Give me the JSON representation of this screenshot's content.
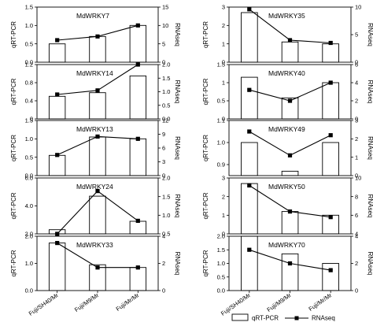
{
  "chart_data": {
    "type": "bar+line",
    "categories": [
      "Fuji/SH40/Mr",
      "Fuji/M9/Mr",
      "Fuji/Mr/Mr"
    ],
    "left_axis_label": "qRT-PCR",
    "right_axis_label": "RNAseq",
    "legend": [
      {
        "name": "qRT-PCR",
        "kind": "bar"
      },
      {
        "name": "RNAseq",
        "kind": "line"
      }
    ],
    "panels": [
      {
        "title": "MdWRKY7",
        "column": "left",
        "left_ylim": [
          0,
          1.5
        ],
        "left_ticks": [
          "0.0",
          "0.5",
          "1.0",
          "1.5"
        ],
        "right_ylim": [
          0,
          15
        ],
        "right_ticks": [
          "0",
          "5",
          "10",
          "15"
        ],
        "bars": [
          0.5,
          0.7,
          1.0
        ],
        "line": [
          6,
          7,
          10
        ]
      },
      {
        "title": "MdWRKY14",
        "column": "left",
        "left_ylim": [
          0,
          1.2
        ],
        "left_ticks": [
          "0",
          "0.4",
          "0.8",
          "1.2"
        ],
        "right_ylim": [
          0,
          2.0
        ],
        "right_ticks": [
          "0.0",
          "0.5",
          "1.0",
          "1.5",
          "2.0"
        ],
        "bars": [
          0.5,
          0.58,
          0.95
        ],
        "line": [
          0.9,
          1.05,
          2.0
        ]
      },
      {
        "title": "MdWRKY13",
        "column": "left",
        "left_ylim": [
          0,
          1.5
        ],
        "left_ticks": [
          "0.0",
          "0.5",
          "1.0",
          "1.5"
        ],
        "right_ylim": [
          0,
          12
        ],
        "right_ticks": [
          "0",
          "3",
          "6",
          "9",
          "12"
        ],
        "bars": [
          0.55,
          1.05,
          1.0
        ],
        "line": [
          4.5,
          8.5,
          8.0
        ]
      },
      {
        "title": "MdWRKY24",
        "column": "left",
        "left_ylim": [
          2.0,
          6.0
        ],
        "left_ticks": [
          "2.0",
          "4.0",
          "6.0"
        ],
        "right_ylim": [
          0.5,
          2.0
        ],
        "right_ticks": [
          "0.5",
          "1.0",
          "1.5",
          "2.0"
        ],
        "bars": [
          2.3,
          4.7,
          2.9
        ],
        "line": [
          0.5,
          1.65,
          0.85
        ]
      },
      {
        "title": "MdWRKY33",
        "column": "left",
        "left_ylim": [
          0,
          2.0
        ],
        "left_ticks": [
          "0.0",
          "1.0",
          "2.0"
        ],
        "right_ylim": [
          0,
          4
        ],
        "right_ticks": [
          "0",
          "2",
          "4"
        ],
        "bars": [
          1.75,
          0.95,
          0.85
        ],
        "line": [
          3.5,
          1.7,
          1.7
        ]
      },
      {
        "title": "MdWRKY35",
        "column": "right",
        "left_ylim": [
          0,
          3
        ],
        "left_ticks": [
          "0",
          "1",
          "2",
          "3"
        ],
        "right_ylim": [
          0,
          10
        ],
        "right_ticks": [
          "0",
          "5",
          "10"
        ],
        "bars": [
          2.7,
          1.1,
          1.0
        ],
        "line": [
          9.6,
          4.0,
          3.5
        ]
      },
      {
        "title": "MdWRKY40",
        "column": "right",
        "left_ylim": [
          0,
          1.5
        ],
        "left_ticks": [
          "0",
          "0.5",
          "1",
          "1.5"
        ],
        "right_ylim": [
          0,
          6
        ],
        "right_ticks": [
          "0",
          "2",
          "4",
          "6"
        ],
        "bars": [
          1.15,
          0.58,
          1.0
        ],
        "line": [
          3.2,
          2.0,
          4.0
        ]
      },
      {
        "title": "MdWRKY49",
        "column": "right",
        "left_ylim": [
          0.85,
          1.1
        ],
        "left_ticks": [
          "0.9",
          "1.0",
          "1.1"
        ],
        "right_ylim": [
          0,
          3
        ],
        "right_ticks": [
          "0",
          "1",
          "2",
          "3"
        ],
        "bars": [
          1.0,
          0.87,
          1.0
        ],
        "line": [
          2.4,
          1.1,
          2.2
        ]
      },
      {
        "title": "MdWRKY50",
        "column": "right",
        "left_ylim": [
          0,
          3
        ],
        "left_ticks": [
          "0",
          "1",
          "2",
          "3"
        ],
        "right_ylim": [
          4,
          10
        ],
        "right_ticks": [
          "4",
          "6",
          "8",
          "10"
        ],
        "bars": [
          2.7,
          1.2,
          1.0
        ],
        "line": [
          9.2,
          6.4,
          5.8
        ]
      },
      {
        "title": "MdWRKY70",
        "column": "right",
        "left_ylim": [
          0,
          2.0
        ],
        "left_ticks": [
          "0.0",
          "0.5",
          "1.0",
          "1.5",
          "2.0"
        ],
        "right_ylim": [
          0,
          4
        ],
        "right_ticks": [
          "0",
          "2",
          "4"
        ],
        "bars": [
          2.1,
          1.35,
          1.0
        ],
        "line": [
          3.0,
          2.0,
          1.5
        ]
      }
    ]
  }
}
